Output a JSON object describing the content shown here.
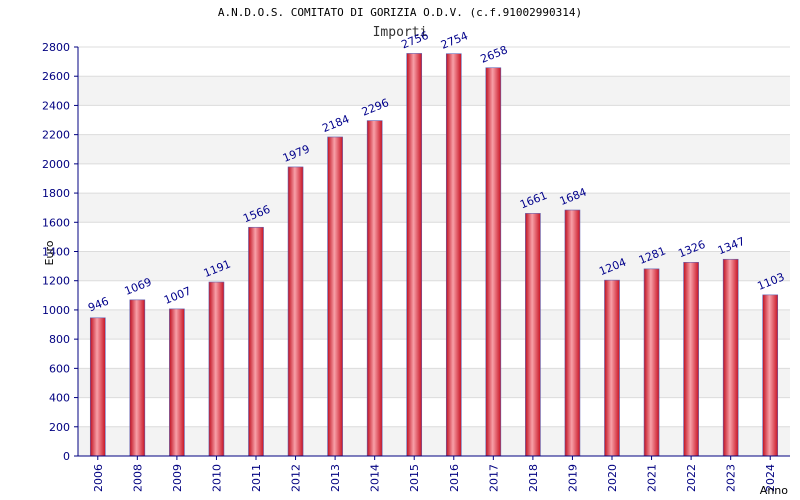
{
  "chart_data": {
    "type": "bar",
    "title": "A.N.D.O.S. COMITATO DI GORIZIA O.D.V. (c.f.91002990314)",
    "subtitle": "Importi",
    "xlabel": "Anno",
    "ylabel": "Euro",
    "ylim": [
      0,
      2800
    ],
    "yticks": [
      0,
      200,
      400,
      600,
      800,
      1000,
      1200,
      1400,
      1600,
      1800,
      2000,
      2200,
      2400,
      2600,
      2800
    ],
    "grid": true,
    "categories": [
      "2006",
      "2008",
      "2009",
      "2010",
      "2011",
      "2012",
      "2013",
      "2014",
      "2015",
      "2016",
      "2017",
      "2018",
      "2019",
      "2020",
      "2021",
      "2022",
      "2023",
      "2024"
    ],
    "values": [
      946,
      1069,
      1007,
      1191,
      1566,
      1979,
      2184,
      2296,
      2756,
      2754,
      2658,
      1661,
      1684,
      1204,
      1281,
      1326,
      1347,
      1103
    ],
    "bar_color": "#e02030",
    "label_color": "#00008b"
  }
}
